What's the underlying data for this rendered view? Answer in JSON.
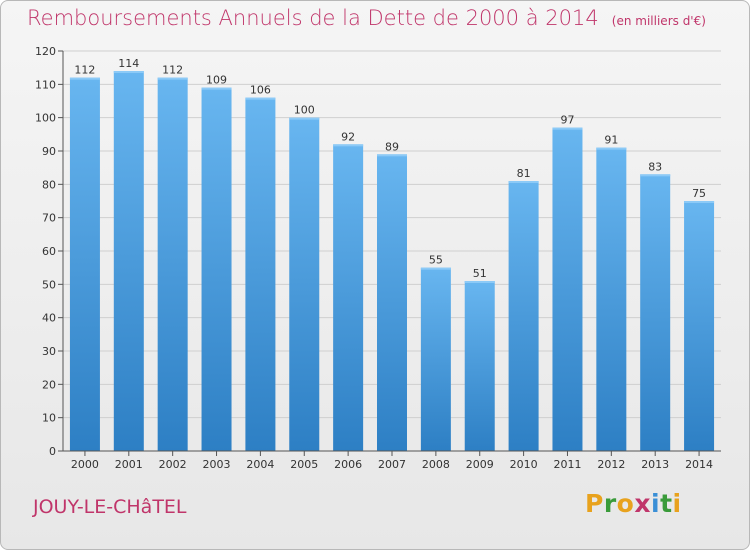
{
  "chart_data": {
    "type": "bar",
    "title": "Remboursements Annuels de la Dette de 2000 à 2014",
    "unit": "(en milliers d'€)",
    "categories": [
      "2000",
      "2001",
      "2002",
      "2003",
      "2004",
      "2005",
      "2006",
      "2007",
      "2008",
      "2009",
      "2010",
      "2011",
      "2012",
      "2013",
      "2014"
    ],
    "values": [
      112,
      114,
      112,
      109,
      106,
      100,
      92,
      89,
      55,
      51,
      81,
      97,
      91,
      83,
      75
    ],
    "ylim": [
      0,
      120
    ],
    "yticks": [
      0,
      10,
      20,
      30,
      40,
      50,
      60,
      70,
      80,
      90,
      100,
      110,
      120
    ],
    "grid": "horizontal",
    "bar_color": "#4a9fe0",
    "bar_color_light": "#68b6f0",
    "bar_color_dark": "#2d7fc4"
  },
  "commune": "JOUY-LE-CHâTEL",
  "logo": {
    "text": "Proxiti",
    "colors": [
      "#e8a21d",
      "#3a9b3a",
      "#e8a21d",
      "#c0356a",
      "#3a8fd6",
      "#3a9b3a",
      "#e8a21d"
    ]
  },
  "colors": {
    "title": "#c0356a",
    "text": "#333333",
    "grid": "#cfcfcf"
  }
}
